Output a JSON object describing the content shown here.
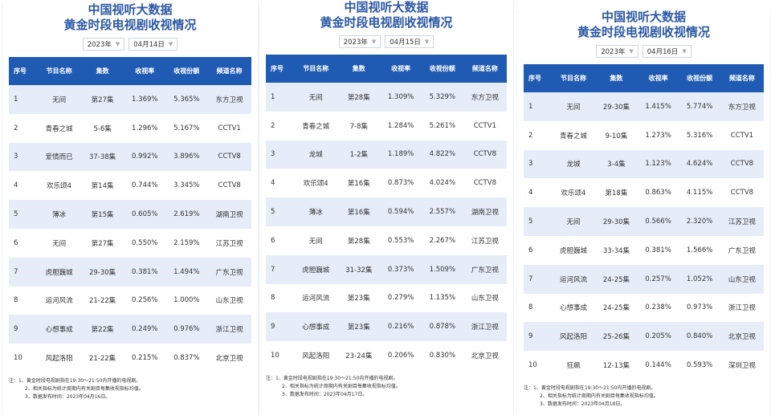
{
  "title_line1": "中国视听大数据",
  "title_line2": "黄金时段电视剧收视情况",
  "headers": [
    "序号",
    "节目名称",
    "集数",
    "收视率",
    "收视份额",
    "频道名称"
  ],
  "panels": [
    {
      "year": "2023年",
      "date": "04月14日",
      "rows": [
        [
          "1",
          "无间",
          "第27集",
          "1.369%",
          "5.365%",
          "东方卫视"
        ],
        [
          "2",
          "青春之城",
          "5-6集",
          "1.296%",
          "5.167%",
          "CCTV1"
        ],
        [
          "3",
          "爱情而已",
          "37-38集",
          "0.992%",
          "3.896%",
          "CCTV8"
        ],
        [
          "4",
          "欢乐颂4",
          "第14集",
          "0.744%",
          "3.345%",
          "CCTV8"
        ],
        [
          "5",
          "薄冰",
          "第15集",
          "0.605%",
          "2.619%",
          "湖南卫视"
        ],
        [
          "6",
          "无间",
          "第27集",
          "0.550%",
          "2.159%",
          "江苏卫视"
        ],
        [
          "7",
          "虎胆巍城",
          "29-30集",
          "0.381%",
          "1.494%",
          "广东卫视"
        ],
        [
          "8",
          "运河风流",
          "21-22集",
          "0.256%",
          "1.000%",
          "山东卫视"
        ],
        [
          "9",
          "心想事成",
          "第22集",
          "0.249%",
          "0.976%",
          "浙江卫视"
        ],
        [
          "10",
          "风起洛阳",
          "21-22集",
          "0.215%",
          "0.837%",
          "北京卫视"
        ]
      ],
      "notes": [
        "注：1、黄金时段电视剧指在19:30～21:50内开播的电视剧。",
        "2、相关指标为统计周期内有关剧目每集收视指标均值。",
        "3、数据发布时间：2023年04月16日。"
      ]
    },
    {
      "year": "2023年",
      "date": "04月15日",
      "rows": [
        [
          "1",
          "无间",
          "第28集",
          "1.309%",
          "5.329%",
          "东方卫视"
        ],
        [
          "2",
          "青春之城",
          "7-8集",
          "1.284%",
          "5.261%",
          "CCTV1"
        ],
        [
          "3",
          "龙城",
          "1-2集",
          "1.189%",
          "4.822%",
          "CCTV8"
        ],
        [
          "4",
          "欢乐颂4",
          "第16集",
          "0.873%",
          "4.024%",
          "CCTV8"
        ],
        [
          "5",
          "薄冰",
          "第16集",
          "0.594%",
          "2.557%",
          "湖南卫视"
        ],
        [
          "6",
          "无间",
          "第28集",
          "0.553%",
          "2.267%",
          "江苏卫视"
        ],
        [
          "7",
          "虎胆巍城",
          "31-32集",
          "0.373%",
          "1.509%",
          "广东卫视"
        ],
        [
          "8",
          "运河风流",
          "第23集",
          "0.279%",
          "1.135%",
          "山东卫视"
        ],
        [
          "9",
          "心想事成",
          "第23集",
          "0.216%",
          "0.878%",
          "浙江卫视"
        ],
        [
          "10",
          "风起洛阳",
          "23-24集",
          "0.206%",
          "0.830%",
          "北京卫视"
        ]
      ],
      "notes": [
        "注：1、黄金时段电视剧指在19:30～21:50内开播的电视剧。",
        "2、相关指标为统计周期内有关剧目每集收视指标均值。",
        "3、数据发布时间：2023年04月17日。"
      ]
    },
    {
      "year": "2023年",
      "date": "04月16日",
      "rows": [
        [
          "1",
          "无间",
          "29-30集",
          "1.415%",
          "5.774%",
          "东方卫视"
        ],
        [
          "2",
          "青春之城",
          "9-10集",
          "1.273%",
          "5.316%",
          "CCTV1"
        ],
        [
          "3",
          "龙城",
          "3-4集",
          "1.123%",
          "4.624%",
          "CCTV8"
        ],
        [
          "4",
          "欢乐颂4",
          "第18集",
          "0.863%",
          "4.115%",
          "CCTV8"
        ],
        [
          "5",
          "无间",
          "29-30集",
          "0.566%",
          "2.320%",
          "江苏卫视"
        ],
        [
          "6",
          "虎胆巍城",
          "33-34集",
          "0.381%",
          "1.566%",
          "广东卫视"
        ],
        [
          "7",
          "运河风流",
          "24-25集",
          "0.257%",
          "1.052%",
          "山东卫视"
        ],
        [
          "8",
          "心想事成",
          "24-25集",
          "0.238%",
          "0.973%",
          "浙江卫视"
        ],
        [
          "9",
          "风起洛阳",
          "25-26集",
          "0.205%",
          "0.840%",
          "北京卫视"
        ],
        [
          "10",
          "狂飙",
          "12-13集",
          "0.144%",
          "0.593%",
          "深圳卫视"
        ]
      ],
      "notes": [
        "注：1、黄金时段电视剧指在19:30～21:50内开播的电视剧。",
        "2、相关指标为统计周期内有关剧目每集收视指标均值。",
        "3、数据发布时间：2023年04月18日。"
      ]
    }
  ]
}
